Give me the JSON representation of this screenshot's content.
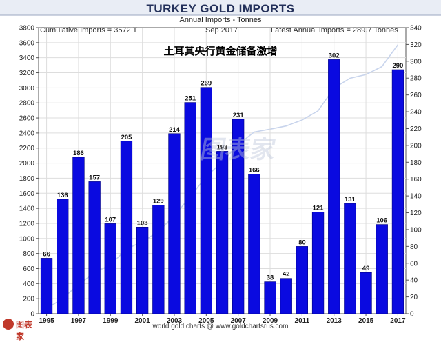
{
  "header": {
    "title": "TURKEY GOLD IMPORTS",
    "subtitle": "Annual Imports - Tonnes",
    "cumulative": "Cumulative Imports = 3572 T",
    "date": "Sep 2017",
    "latest": "Latest Annual Imports = 289.7 Tonnes",
    "cn_title": "土耳其央行黄金储备激增"
  },
  "footer": {
    "text": "world gold charts @ www.goldchartsrus.com"
  },
  "watermark": {
    "text": "图表家"
  },
  "logo": {
    "text": "图表家"
  },
  "colors": {
    "bar": "#0a0ae0",
    "bar_edge": "#000080",
    "header": "#23305a",
    "cumulative_line": "#c8d4ec",
    "grid": "#dddddd"
  },
  "chart_data": {
    "type": "bar",
    "title": "TURKEY GOLD IMPORTS",
    "subtitle": "Annual Imports - Tonnes",
    "categories": [
      "1995",
      "1996",
      "1997",
      "1998",
      "1999",
      "2000",
      "2001",
      "2002",
      "2003",
      "2004",
      "2005",
      "2006",
      "2007",
      "2008",
      "2009",
      "2010",
      "2011",
      "2012",
      "2013",
      "2014",
      "2015",
      "2016",
      "2017"
    ],
    "x_tick_labels": [
      "1995",
      "1997",
      "1999",
      "2001",
      "2003",
      "2005",
      "2007",
      "2009",
      "2011",
      "2013",
      "2015",
      "2017"
    ],
    "series": [
      {
        "values": [
          66,
          136,
          186,
          157,
          107,
          205,
          103,
          129,
          214,
          251,
          269,
          193,
          231,
          166,
          38,
          42,
          80,
          121,
          302,
          131,
          49,
          106,
          290
        ]
      },
      {
        "axis": "left",
        "values": [
          66,
          202,
          388,
          545,
          652,
          857,
          960,
          1089,
          1303,
          1554,
          1823,
          2016,
          2247,
          2413,
          2451,
          2493,
          2573,
          2694,
          2996,
          3127,
          3176,
          3282,
          3572
        ]
      }
    ],
    "bar_labels": [
      "66",
      "136",
      "186",
      "157",
      "107",
      "205",
      "103",
      "129",
      "214",
      "251",
      "269",
      "193",
      "231",
      "166",
      "38",
      "42",
      "80",
      "121",
      "302",
      "131",
      "49",
      "106",
      "290"
    ],
    "left_axis": {
      "ylim": [
        0,
        3800
      ],
      "ticks": [
        "0",
        "200",
        "400",
        "600",
        "800",
        "1000",
        "1200",
        "1400",
        "1600",
        "1800",
        "2000",
        "2200",
        "2400",
        "2600",
        "2800",
        "3000",
        "3200",
        "3400",
        "3600",
        "3800"
      ]
    },
    "right_axis": {
      "ylim": [
        0,
        340
      ],
      "ticks": [
        "0",
        "20",
        "40",
        "60",
        "80",
        "100",
        "120",
        "140",
        "160",
        "180",
        "200",
        "220",
        "240",
        "260",
        "280",
        "300",
        "320",
        "340"
      ]
    },
    "grid": true
  }
}
